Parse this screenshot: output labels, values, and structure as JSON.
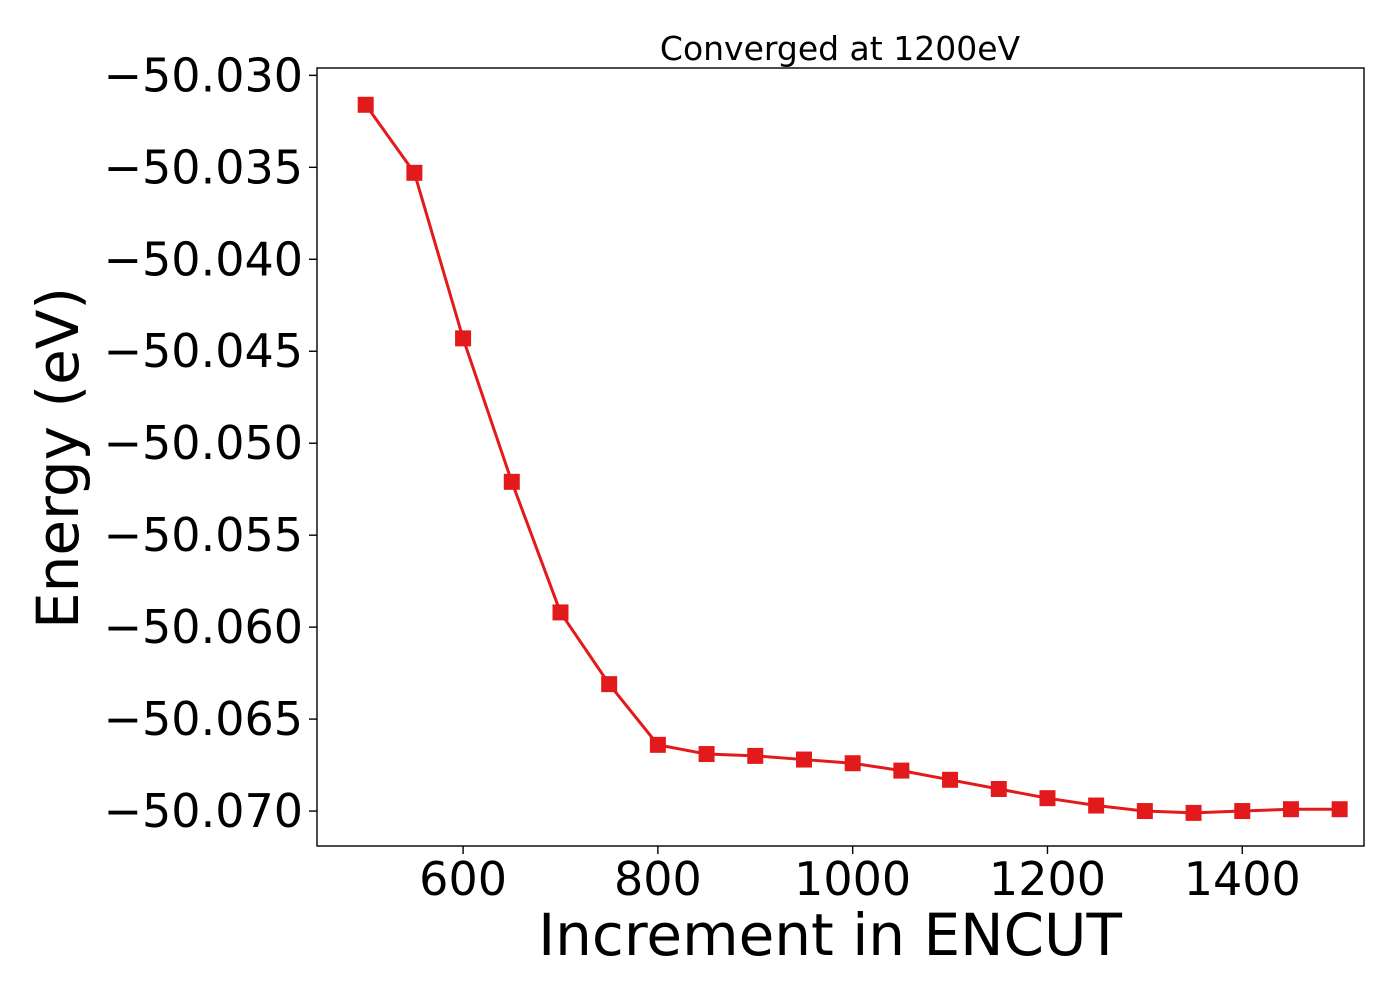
{
  "chart_data": {
    "type": "line",
    "title": "Converged at 1200eV",
    "xlabel": "Increment in ENCUT",
    "ylabel": "Energy (eV)",
    "xlim": [
      450,
      1525
    ],
    "ylim": [
      -50.0719,
      -50.0296
    ],
    "xticks": [
      600,
      800,
      1000,
      1200,
      1400
    ],
    "yticks": [
      -50.03,
      -50.035,
      -50.04,
      -50.045,
      -50.05,
      -50.055,
      -50.06,
      -50.065,
      -50.07
    ],
    "ytick_labels": [
      "−50.030",
      "−50.035",
      "−50.040",
      "−50.045",
      "−50.050",
      "−50.055",
      "−50.060",
      "−50.065",
      "−50.070"
    ],
    "grid": false,
    "marker": "square",
    "color": "#e31a1c",
    "series": [
      {
        "x": [
          500,
          550,
          600,
          650,
          700,
          750,
          800,
          850,
          900,
          950,
          1000,
          1050,
          1100,
          1150,
          1200,
          1250,
          1300,
          1350,
          1400,
          1450,
          1500
        ],
        "values": [
          -50.0316,
          -50.0353,
          -50.0443,
          -50.0521,
          -50.0592,
          -50.0631,
          -50.0664,
          -50.0669,
          -50.067,
          -50.0672,
          -50.0674,
          -50.0678,
          -50.0683,
          -50.0688,
          -50.0693,
          -50.0697,
          -50.07,
          -50.0701,
          -50.07,
          -50.0699,
          -50.0699
        ]
      }
    ]
  }
}
